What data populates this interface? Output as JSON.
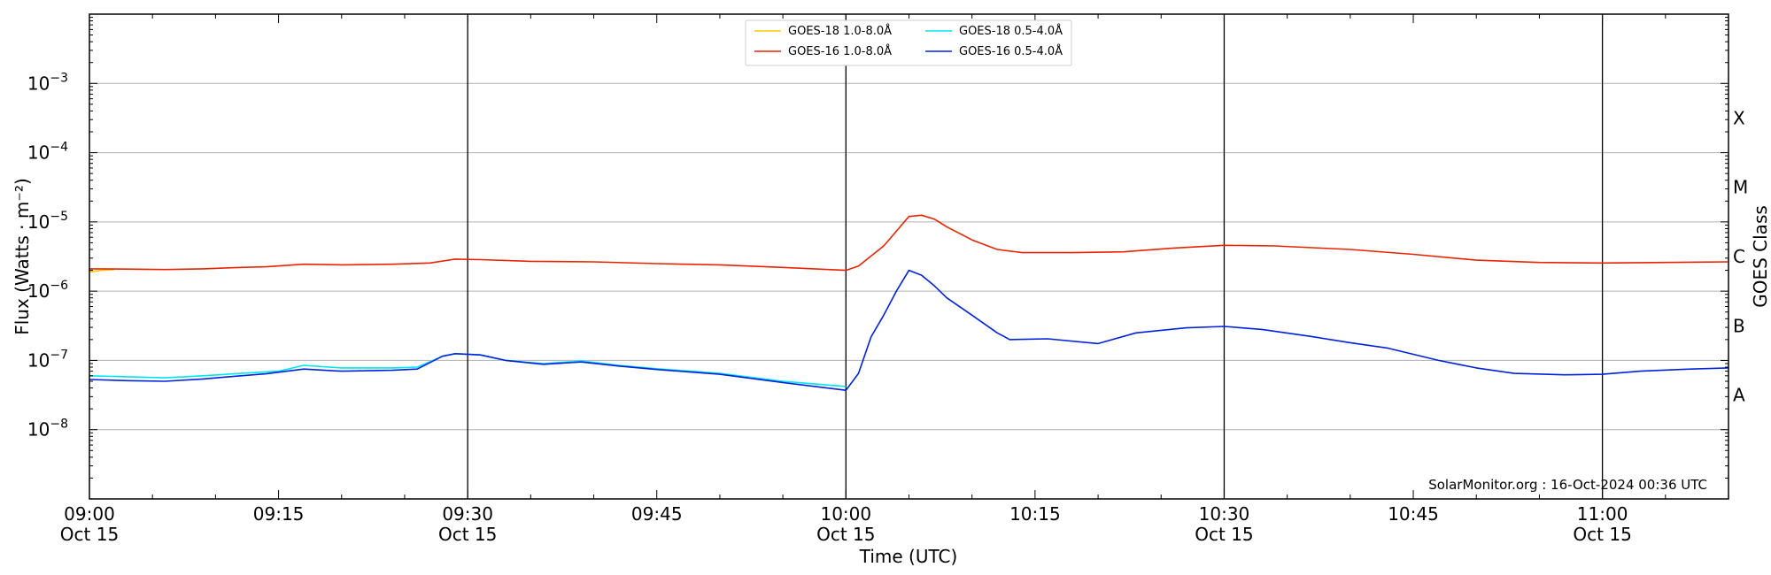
{
  "chart_data": {
    "type": "line",
    "title": "",
    "xlabel": "Time (UTC)",
    "ylabel": "Flux (Watts · m⁻²)",
    "y2label": "GOES Class",
    "yscale": "log",
    "x_range_minutes_after_0900": [
      0,
      130
    ],
    "ylim": [
      "1e-9",
      "1e-2"
    ],
    "x_ticks": [
      {
        "t": 0,
        "time": "09:00",
        "date": "Oct 15"
      },
      {
        "t": 15,
        "time": "09:15",
        "date": ""
      },
      {
        "t": 30,
        "time": "09:30",
        "date": "Oct 15"
      },
      {
        "t": 45,
        "time": "09:45",
        "date": ""
      },
      {
        "t": 60,
        "time": "10:00",
        "date": "Oct 15"
      },
      {
        "t": 75,
        "time": "10:15",
        "date": ""
      },
      {
        "t": 90,
        "time": "10:30",
        "date": "Oct 15"
      },
      {
        "t": 105,
        "time": "10:45",
        "date": ""
      },
      {
        "t": 120,
        "time": "11:00",
        "date": "Oct 15"
      }
    ],
    "y_ticks": [
      {
        "exp": -8,
        "base": "10",
        "sup": "−8"
      },
      {
        "exp": -7,
        "base": "10",
        "sup": "−7"
      },
      {
        "exp": -6,
        "base": "10",
        "sup": "−6"
      },
      {
        "exp": -5,
        "base": "10",
        "sup": "−5"
      },
      {
        "exp": -4,
        "base": "10",
        "sup": "−4"
      },
      {
        "exp": -3,
        "base": "10",
        "sup": "−3"
      }
    ],
    "goes_classes": [
      {
        "label": "A",
        "exp": -7.5
      },
      {
        "label": "B",
        "exp": -6.5
      },
      {
        "label": "C",
        "exp": -5.5
      },
      {
        "label": "M",
        "exp": -4.5
      },
      {
        "label": "X",
        "exp": -3.5
      }
    ],
    "grid": "horizontal at decades; vertical at 30-minute marks",
    "legend_position": "top-center",
    "series": [
      {
        "name": "GOES-18 1.0-8.0Å",
        "color": "#ffc800",
        "points": [
          [
            0,
            "1.9e-6"
          ],
          [
            1,
            "2.0e-6"
          ],
          [
            2,
            "2.05e-6"
          ]
        ]
      },
      {
        "name": "GOES-16 1.0-8.0Å",
        "color": "#e82400",
        "points": [
          [
            0,
            "2.1e-6"
          ],
          [
            3,
            "2.08e-6"
          ],
          [
            6,
            "2.05e-6"
          ],
          [
            9,
            "2.1e-6"
          ],
          [
            12,
            "2.2e-6"
          ],
          [
            14,
            "2.25e-6"
          ],
          [
            17,
            "2.45e-6"
          ],
          [
            20,
            "2.4e-6"
          ],
          [
            24,
            "2.45e-6"
          ],
          [
            27,
            "2.55e-6"
          ],
          [
            29,
            "2.9e-6"
          ],
          [
            31,
            "2.85e-6"
          ],
          [
            35,
            "2.7e-6"
          ],
          [
            40,
            "2.65e-6"
          ],
          [
            45,
            "2.5e-6"
          ],
          [
            50,
            "2.4e-6"
          ],
          [
            55,
            "2.2e-6"
          ],
          [
            60,
            "2.0e-6"
          ],
          [
            61,
            "2.3e-6"
          ],
          [
            63,
            "4.5e-6"
          ],
          [
            65,
            "1.2e-5"
          ],
          [
            66,
            "1.25e-5"
          ],
          [
            67,
            "1.1e-5"
          ],
          [
            68,
            "8.5e-6"
          ],
          [
            70,
            "5.5e-6"
          ],
          [
            72,
            "4.0e-6"
          ],
          [
            74,
            "3.6e-6"
          ],
          [
            78,
            "3.6e-6"
          ],
          [
            82,
            "3.7e-6"
          ],
          [
            86,
            "4.2e-6"
          ],
          [
            90,
            "4.6e-6"
          ],
          [
            94,
            "4.5e-6"
          ],
          [
            100,
            "4.0e-6"
          ],
          [
            105,
            "3.4e-6"
          ],
          [
            110,
            "2.8e-6"
          ],
          [
            115,
            "2.6e-6"
          ],
          [
            120,
            "2.55e-6"
          ],
          [
            125,
            "2.6e-6"
          ],
          [
            130,
            "2.65e-6"
          ]
        ]
      },
      {
        "name": "GOES-18 0.5-4.0Å",
        "color": "#00e5ee",
        "points": [
          [
            0,
            "6.0e-8"
          ],
          [
            3,
            "5.8e-8"
          ],
          [
            6,
            "5.6e-8"
          ],
          [
            9,
            "6.0e-8"
          ],
          [
            12,
            "6.5e-8"
          ],
          [
            15,
            "7.0e-8"
          ],
          [
            17,
            "8.5e-8"
          ],
          [
            20,
            "7.8e-8"
          ],
          [
            24,
            "7.8e-8"
          ],
          [
            26,
            "8.0e-8"
          ],
          [
            28,
            "1.15e-7"
          ],
          [
            29,
            "1.25e-7"
          ],
          [
            31,
            "1.2e-7"
          ],
          [
            33,
            "1.0e-7"
          ],
          [
            36,
            "9.0e-8"
          ],
          [
            39,
            "9.8e-8"
          ],
          [
            42,
            "8.5e-8"
          ],
          [
            45,
            "7.6e-8"
          ],
          [
            50,
            "6.5e-8"
          ],
          [
            55,
            "5.0e-8"
          ],
          [
            58,
            "4.5e-8"
          ],
          [
            60,
            "4.2e-8"
          ]
        ]
      },
      {
        "name": "GOES-16 0.5-4.0Å",
        "color": "#0022dd",
        "points": [
          [
            0,
            "5.3e-8"
          ],
          [
            3,
            "5.1e-8"
          ],
          [
            6,
            "5.0e-8"
          ],
          [
            9,
            "5.4e-8"
          ],
          [
            12,
            "6.0e-8"
          ],
          [
            14,
            "6.4e-8"
          ],
          [
            17,
            "7.5e-8"
          ],
          [
            20,
            "7.0e-8"
          ],
          [
            24,
            "7.2e-8"
          ],
          [
            26,
            "7.5e-8"
          ],
          [
            28,
            "1.15e-7"
          ],
          [
            29,
            "1.25e-7"
          ],
          [
            31,
            "1.2e-7"
          ],
          [
            33,
            "1.0e-7"
          ],
          [
            36,
            "8.8e-8"
          ],
          [
            39,
            "9.5e-8"
          ],
          [
            42,
            "8.3e-8"
          ],
          [
            45,
            "7.4e-8"
          ],
          [
            50,
            "6.3e-8"
          ],
          [
            55,
            "4.8e-8"
          ],
          [
            58,
            "4.1e-8"
          ],
          [
            60,
            "3.7e-8"
          ],
          [
            61,
            "6.5e-8"
          ],
          [
            62,
            "2.2e-7"
          ],
          [
            63,
            "4.5e-7"
          ],
          [
            64,
            "1.0e-6"
          ],
          [
            65,
            "2.0e-6"
          ],
          [
            66,
            "1.7e-6"
          ],
          [
            67,
            "1.2e-6"
          ],
          [
            68,
            "8.0e-7"
          ],
          [
            70,
            "4.5e-7"
          ],
          [
            72,
            "2.5e-7"
          ],
          [
            73,
            "2.0e-7"
          ],
          [
            76,
            "2.05e-7"
          ],
          [
            80,
            "1.75e-7"
          ],
          [
            83,
            "2.5e-7"
          ],
          [
            87,
            "2.95e-7"
          ],
          [
            90,
            "3.1e-7"
          ],
          [
            93,
            "2.8e-7"
          ],
          [
            97,
            "2.2e-7"
          ],
          [
            100,
            "1.8e-7"
          ],
          [
            103,
            "1.5e-7"
          ],
          [
            107,
            "1.0e-7"
          ],
          [
            110,
            "7.8e-8"
          ],
          [
            113,
            "6.5e-8"
          ],
          [
            117,
            "6.2e-8"
          ],
          [
            120,
            "6.3e-8"
          ],
          [
            123,
            "7.0e-8"
          ],
          [
            127,
            "7.5e-8"
          ],
          [
            130,
            "7.8e-8"
          ]
        ]
      }
    ],
    "credit": "SolarMonitor.org : 16-Oct-2024 00:36 UTC"
  }
}
